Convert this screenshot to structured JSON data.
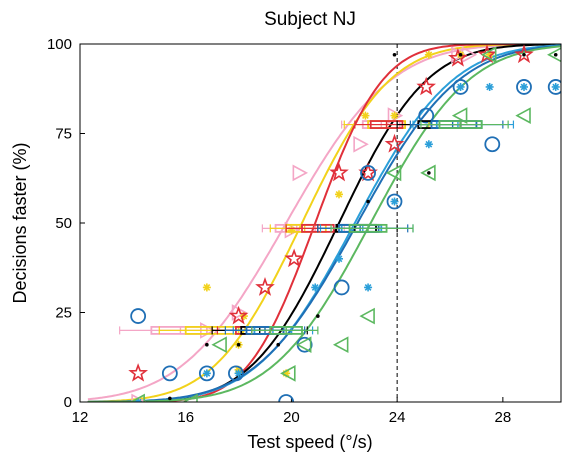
{
  "chart_data": {
    "type": "scatter",
    "title": "Subject NJ",
    "xlabel": "Test speed (°/s)",
    "ylabel": "Decisions faster (%)",
    "xlim": [
      12,
      30.2
    ],
    "ylim": [
      0,
      100
    ],
    "xticks": [
      12,
      16,
      20,
      24,
      28
    ],
    "yticks": [
      0,
      25,
      50,
      75,
      100
    ],
    "reference_line": {
      "x": 24,
      "style": "dashed",
      "color": "#000000"
    },
    "series": [
      {
        "color": "#f4a6c6",
        "marker": "triangle-right",
        "curve": {
          "mu": 19.8,
          "sigma": 3.1
        },
        "points": [
          [
            14.2,
            0
          ],
          [
            20.0,
            48
          ],
          [
            20.3,
            64
          ],
          [
            22.6,
            72
          ],
          [
            23.9,
            80
          ],
          [
            26.3,
            97
          ],
          [
            16.8,
            20
          ],
          [
            18.0,
            25
          ],
          [
            26.7,
            97
          ]
        ],
        "intervals": [
          {
            "y": 20,
            "whisker": [
              13.5,
              17.8
            ],
            "box": [
              14.7,
              16.8
            ],
            "median": 15.8
          },
          {
            "y": 48.5,
            "whisker": [
              18.9,
              22.0
            ],
            "box": [
              19.4,
              20.9
            ],
            "median": 20.2
          },
          {
            "y": 77.5,
            "whisker": [
              21.9,
              25.6
            ],
            "box": [
              22.7,
              24.1
            ],
            "median": 23.4
          }
        ]
      },
      {
        "color": "#f2d21b",
        "marker": "asterisk",
        "curve": {
          "mu": 20.4,
          "sigma": 2.6
        },
        "points": [
          [
            16.8,
            32
          ],
          [
            18.0,
            16
          ],
          [
            18.2,
            24
          ],
          [
            20.0,
            48
          ],
          [
            21.8,
            58
          ],
          [
            22.8,
            80
          ],
          [
            23.9,
            80
          ],
          [
            25.2,
            97
          ],
          [
            26.4,
            97
          ],
          [
            27.5,
            97
          ],
          [
            18.0,
            9
          ],
          [
            19.8,
            8
          ]
        ],
        "intervals": [
          {
            "y": 20,
            "whisker": [
              15.0,
              19.0
            ],
            "box": [
              16.0,
              18.0
            ],
            "median": 17.0
          },
          {
            "y": 48.5,
            "whisker": [
              19.2,
              22.2
            ],
            "box": [
              19.8,
              21.3
            ],
            "median": 20.5
          },
          {
            "y": 77.5,
            "whisker": [
              22.0,
              25.2
            ],
            "box": [
              22.9,
              24.3
            ],
            "median": 23.6
          }
        ]
      },
      {
        "color": "#e0303a",
        "marker": "star",
        "curve": {
          "mu": 20.9,
          "sigma": 2.0
        },
        "points": [
          [
            14.2,
            8
          ],
          [
            18.0,
            24
          ],
          [
            19.0,
            32
          ],
          [
            20.1,
            40
          ],
          [
            21.8,
            64
          ],
          [
            22.9,
            64
          ],
          [
            23.9,
            72
          ],
          [
            25.1,
            88
          ],
          [
            26.3,
            96
          ],
          [
            28.8,
            97
          ],
          [
            27.4,
            97
          ]
        ],
        "intervals": [
          {
            "y": 20,
            "whisker": [
              17.2,
              19.8
            ],
            "box": [
              17.9,
              19.2
            ],
            "median": 18.5
          },
          {
            "y": 48.5,
            "whisker": [
              19.8,
              22.2
            ],
            "box": [
              20.4,
              21.6
            ],
            "median": 21.0
          },
          {
            "y": 77.5,
            "whisker": [
              22.4,
              24.8
            ],
            "box": [
              23.0,
              24.2
            ],
            "median": 23.6
          }
        ]
      },
      {
        "color": "#000000",
        "marker": "dot",
        "curve": {
          "mu": 21.8,
          "sigma": 2.6
        },
        "points": [
          [
            14.2,
            0
          ],
          [
            15.4,
            1
          ],
          [
            16.8,
            16
          ],
          [
            18.0,
            16
          ],
          [
            19.5,
            16
          ],
          [
            21.0,
            24
          ],
          [
            22.9,
            56
          ],
          [
            23.9,
            97
          ],
          [
            25.2,
            64
          ],
          [
            26.4,
            97
          ],
          [
            27.5,
            88
          ],
          [
            28.8,
            97
          ],
          [
            30.0,
            97
          ]
        ],
        "intervals": [
          {
            "y": 20,
            "whisker": [
              17.0,
              20.6
            ],
            "box": [
              18.1,
              19.7
            ],
            "median": 18.8
          },
          {
            "y": 48.5,
            "whisker": [
              21.0,
              24.0
            ],
            "box": [
              21.7,
              23.2
            ],
            "median": 22.4
          },
          {
            "y": 77.5,
            "whisker": [
              24.0,
              27.0
            ],
            "box": [
              24.8,
              26.4
            ],
            "median": 25.6
          }
        ]
      },
      {
        "color": "#2b9fd9",
        "marker": "asterisk",
        "curve": {
          "mu": 22.4,
          "sigma": 2.9
        },
        "points": [
          [
            14.2,
            0
          ],
          [
            16.8,
            8
          ],
          [
            18.0,
            8
          ],
          [
            20.9,
            32
          ],
          [
            21.8,
            40
          ],
          [
            22.9,
            32
          ],
          [
            23.9,
            56
          ],
          [
            25.2,
            72
          ],
          [
            26.4,
            88
          ],
          [
            27.5,
            88
          ],
          [
            28.8,
            88
          ],
          [
            30.0,
            88
          ]
        ],
        "intervals": [
          {
            "y": 20,
            "whisker": [
              17.8,
              20.8
            ],
            "box": [
              18.6,
              20.0
            ],
            "median": 19.3
          },
          {
            "y": 48.5,
            "whisker": [
              21.1,
              24.6
            ],
            "box": [
              21.9,
              23.4
            ],
            "median": 22.7
          },
          {
            "y": 77.5,
            "whisker": [
              24.6,
              28.4
            ],
            "box": [
              25.5,
              27.2
            ],
            "median": 26.3
          }
        ]
      },
      {
        "color": "#1f6fb5",
        "marker": "circle",
        "curve": {
          "mu": 22.5,
          "sigma": 3.0
        },
        "points": [
          [
            14.2,
            24
          ],
          [
            15.4,
            8
          ],
          [
            16.8,
            8
          ],
          [
            17.9,
            8
          ],
          [
            19.8,
            0
          ],
          [
            20.5,
            16
          ],
          [
            21.9,
            32
          ],
          [
            22.9,
            64
          ],
          [
            23.9,
            56
          ],
          [
            25.1,
            80
          ],
          [
            26.4,
            88
          ],
          [
            27.6,
            72
          ],
          [
            28.8,
            88
          ],
          [
            30.0,
            88
          ]
        ],
        "intervals": [
          {
            "y": 20,
            "whisker": [
              17.5,
              20.5
            ],
            "box": [
              18.3,
              19.7
            ],
            "median": 19.0
          },
          {
            "y": 48.5,
            "whisker": [
              21.0,
              24.4
            ],
            "box": [
              21.8,
              23.3
            ],
            "median": 22.6
          },
          {
            "y": 77.5,
            "whisker": [
              24.5,
              28.0
            ],
            "box": [
              25.3,
              27.0
            ],
            "median": 26.1
          }
        ]
      },
      {
        "color": "#5cb860",
        "marker": "triangle-left",
        "curve": {
          "mu": 23.0,
          "sigma": 2.9
        },
        "points": [
          [
            14.2,
            0
          ],
          [
            16.2,
            0
          ],
          [
            17.3,
            16
          ],
          [
            19.9,
            8
          ],
          [
            20.5,
            16
          ],
          [
            21.9,
            16
          ],
          [
            22.9,
            24
          ],
          [
            23.9,
            64
          ],
          [
            25.2,
            64
          ],
          [
            26.4,
            80
          ],
          [
            27.5,
            97
          ],
          [
            28.8,
            80
          ],
          [
            30.0,
            97
          ]
        ],
        "intervals": [
          {
            "y": 20,
            "whisker": [
              18.5,
              21.0
            ],
            "box": [
              19.2,
              20.4
            ],
            "median": 19.8
          },
          {
            "y": 48.5,
            "whisker": [
              21.5,
              24.6
            ],
            "box": [
              22.2,
              23.6
            ],
            "median": 22.9
          },
          {
            "y": 77.5,
            "whisker": [
              24.9,
              28.2
            ],
            "box": [
              25.6,
              27.2
            ],
            "median": 26.4
          }
        ]
      }
    ]
  }
}
